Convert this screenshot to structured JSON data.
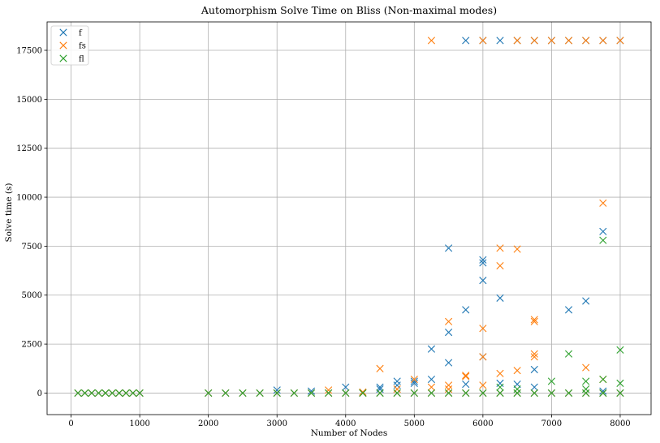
{
  "chart_data": {
    "type": "scatter",
    "title": "Automorphism Solve Time on Bliss (Non-maximal modes)",
    "xlabel": "Number of Nodes",
    "ylabel": "Solve time (s)",
    "xlim": [
      -350,
      8450
    ],
    "ylim": [
      -1100,
      18950
    ],
    "xticks": [
      0,
      1000,
      2000,
      3000,
      4000,
      5000,
      6000,
      7000,
      8000
    ],
    "yticks": [
      0,
      2500,
      5000,
      7500,
      10000,
      12500,
      15000,
      17500
    ],
    "grid": true,
    "marker": "x",
    "legend_position": "top-left",
    "series": [
      {
        "name": "f",
        "color": "#1f77b4",
        "points": [
          [
            100,
            0
          ],
          [
            200,
            0
          ],
          [
            300,
            0
          ],
          [
            400,
            0
          ],
          [
            500,
            0
          ],
          [
            600,
            0
          ],
          [
            700,
            0
          ],
          [
            800,
            0
          ],
          [
            900,
            0
          ],
          [
            1000,
            0
          ],
          [
            2000,
            0
          ],
          [
            2250,
            0
          ],
          [
            2500,
            0
          ],
          [
            2750,
            0
          ],
          [
            3000,
            0
          ],
          [
            3000,
            150
          ],
          [
            3250,
            0
          ],
          [
            3500,
            0
          ],
          [
            3500,
            100
          ],
          [
            3750,
            0
          ],
          [
            4000,
            0
          ],
          [
            4000,
            300
          ],
          [
            4250,
            0
          ],
          [
            4500,
            0
          ],
          [
            4500,
            200
          ],
          [
            4500,
            300
          ],
          [
            4750,
            0
          ],
          [
            4750,
            400
          ],
          [
            4750,
            600
          ],
          [
            5000,
            0
          ],
          [
            5000,
            500
          ],
          [
            5000,
            600
          ],
          [
            5250,
            0
          ],
          [
            5250,
            700
          ],
          [
            5250,
            2250
          ],
          [
            5500,
            0
          ],
          [
            5500,
            1550
          ],
          [
            5500,
            3100
          ],
          [
            5500,
            7400
          ],
          [
            5750,
            0
          ],
          [
            5750,
            450
          ],
          [
            5750,
            4250
          ],
          [
            5750,
            18000
          ],
          [
            6000,
            0
          ],
          [
            6000,
            1850
          ],
          [
            6000,
            5750
          ],
          [
            6000,
            6650
          ],
          [
            6000,
            6800
          ],
          [
            6000,
            18000
          ],
          [
            6250,
            0
          ],
          [
            6250,
            500
          ],
          [
            6250,
            4850
          ],
          [
            6250,
            18000
          ],
          [
            6500,
            0
          ],
          [
            6500,
            450
          ],
          [
            6500,
            18000
          ],
          [
            6750,
            0
          ],
          [
            6750,
            300
          ],
          [
            6750,
            1200
          ],
          [
            6750,
            18000
          ],
          [
            7000,
            0
          ],
          [
            7000,
            18000
          ],
          [
            7250,
            0
          ],
          [
            7250,
            4250
          ],
          [
            7250,
            18000
          ],
          [
            7500,
            0
          ],
          [
            7500,
            4700
          ],
          [
            7500,
            18000
          ],
          [
            7750,
            0
          ],
          [
            7750,
            100
          ],
          [
            7750,
            8250
          ],
          [
            7750,
            18000
          ],
          [
            8000,
            0
          ],
          [
            8000,
            18000
          ]
        ]
      },
      {
        "name": "fs",
        "color": "#ff7f0e",
        "points": [
          [
            100,
            0
          ],
          [
            200,
            0
          ],
          [
            300,
            0
          ],
          [
            400,
            0
          ],
          [
            500,
            0
          ],
          [
            600,
            0
          ],
          [
            700,
            0
          ],
          [
            800,
            0
          ],
          [
            900,
            0
          ],
          [
            1000,
            0
          ],
          [
            2000,
            0
          ],
          [
            2250,
            0
          ],
          [
            2500,
            0
          ],
          [
            2750,
            0
          ],
          [
            3000,
            0
          ],
          [
            3250,
            0
          ],
          [
            3500,
            0
          ],
          [
            3750,
            0
          ],
          [
            3750,
            150
          ],
          [
            4000,
            0
          ],
          [
            4250,
            0
          ],
          [
            4250,
            50
          ],
          [
            4500,
            0
          ],
          [
            4500,
            1250
          ],
          [
            4750,
            0
          ],
          [
            4750,
            200
          ],
          [
            5000,
            0
          ],
          [
            5000,
            700
          ],
          [
            5250,
            0
          ],
          [
            5250,
            300
          ],
          [
            5250,
            18000
          ],
          [
            5500,
            0
          ],
          [
            5500,
            200
          ],
          [
            5500,
            400
          ],
          [
            5500,
            3650
          ],
          [
            5750,
            0
          ],
          [
            5750,
            850
          ],
          [
            5750,
            900
          ],
          [
            6000,
            0
          ],
          [
            6000,
            400
          ],
          [
            6000,
            1850
          ],
          [
            6000,
            3300
          ],
          [
            6000,
            18000
          ],
          [
            6250,
            0
          ],
          [
            6250,
            1000
          ],
          [
            6250,
            6500
          ],
          [
            6250,
            7400
          ],
          [
            6500,
            0
          ],
          [
            6500,
            1150
          ],
          [
            6500,
            7350
          ],
          [
            6500,
            18000
          ],
          [
            6750,
            0
          ],
          [
            6750,
            1850
          ],
          [
            6750,
            2000
          ],
          [
            6750,
            3650
          ],
          [
            6750,
            3750
          ],
          [
            6750,
            18000
          ],
          [
            7000,
            0
          ],
          [
            7000,
            18000
          ],
          [
            7250,
            0
          ],
          [
            7250,
            18000
          ],
          [
            7500,
            0
          ],
          [
            7500,
            1300
          ],
          [
            7500,
            18000
          ],
          [
            7750,
            0
          ],
          [
            7750,
            700
          ],
          [
            7750,
            9700
          ],
          [
            7750,
            18000
          ],
          [
            8000,
            0
          ],
          [
            8000,
            18000
          ]
        ]
      },
      {
        "name": "fl",
        "color": "#2ca02c",
        "points": [
          [
            100,
            0
          ],
          [
            200,
            0
          ],
          [
            300,
            0
          ],
          [
            400,
            0
          ],
          [
            500,
            0
          ],
          [
            600,
            0
          ],
          [
            700,
            0
          ],
          [
            800,
            0
          ],
          [
            900,
            0
          ],
          [
            1000,
            0
          ],
          [
            2000,
            0
          ],
          [
            2250,
            0
          ],
          [
            2500,
            0
          ],
          [
            2750,
            0
          ],
          [
            3000,
            0
          ],
          [
            3250,
            0
          ],
          [
            3500,
            0
          ],
          [
            3750,
            0
          ],
          [
            4000,
            0
          ],
          [
            4250,
            0
          ],
          [
            4500,
            0
          ],
          [
            4750,
            0
          ],
          [
            5000,
            0
          ],
          [
            5250,
            0
          ],
          [
            5500,
            0
          ],
          [
            5750,
            0
          ],
          [
            6000,
            0
          ],
          [
            6250,
            0
          ],
          [
            6250,
            300
          ],
          [
            6500,
            0
          ],
          [
            6500,
            200
          ],
          [
            6750,
            0
          ],
          [
            7000,
            0
          ],
          [
            7000,
            600
          ],
          [
            7250,
            0
          ],
          [
            7250,
            2000
          ],
          [
            7500,
            0
          ],
          [
            7500,
            200
          ],
          [
            7500,
            600
          ],
          [
            7750,
            0
          ],
          [
            7750,
            700
          ],
          [
            7750,
            7800
          ],
          [
            8000,
            0
          ],
          [
            8000,
            500
          ],
          [
            8000,
            2200
          ]
        ]
      }
    ]
  }
}
